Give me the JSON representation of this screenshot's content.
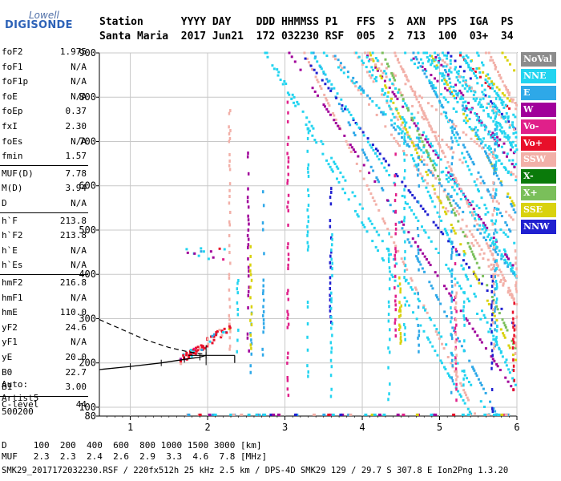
{
  "logo": {
    "line1": "Lowell",
    "line2": "DIGISONDE"
  },
  "header": {
    "labels": "Station      YYYY DAY    DDD HHMMSS P1   FFS  S  AXN  PPS  IGA  PS",
    "values": "Santa Maria  2017 Jun21  172 032230 RSF  005  2  713  100  03+  34"
  },
  "params": [
    {
      "name": "foF2",
      "value": "1.975"
    },
    {
      "name": "foF1",
      "value": "N/A"
    },
    {
      "name": "foF1p",
      "value": "N/A"
    },
    {
      "name": "foE",
      "value": "N/A"
    },
    {
      "name": "foEp",
      "value": "0.37"
    },
    {
      "name": "fxI",
      "value": "2.30"
    },
    {
      "name": "foEs",
      "value": "N/A"
    },
    {
      "name": "fmin",
      "value": "1.57"
    },
    {
      "name": "MUF(D)",
      "value": "7.78"
    },
    {
      "name": "M(D)",
      "value": "3.94"
    },
    {
      "name": "D",
      "value": "N/A"
    },
    {
      "name": "h`F",
      "value": "213.8"
    },
    {
      "name": "h`F2",
      "value": "213.8"
    },
    {
      "name": "h`E",
      "value": "N/A"
    },
    {
      "name": "h`Es",
      "value": "N/A"
    },
    {
      "name": "hmF2",
      "value": "216.8"
    },
    {
      "name": "hmF1",
      "value": "N/A"
    },
    {
      "name": "hmE",
      "value": "110.0"
    },
    {
      "name": "yF2",
      "value": "24.6"
    },
    {
      "name": "yF1",
      "value": "N/A"
    },
    {
      "name": "yE",
      "value": "20.0"
    },
    {
      "name": "B0",
      "value": "22.7"
    },
    {
      "name": "B1",
      "value": "3.00"
    },
    {
      "name": "C-level",
      "value": "44"
    }
  ],
  "auto": {
    "line1": "Auto:",
    "line2": "Artist5",
    "line3": "500200"
  },
  "muf_table": {
    "row_d": "D     100  200  400  600  800 1000 1500 3000 [km]",
    "row_muf": "MUF   2.3  2.3  2.4  2.6  2.9  3.3  4.6  7.8 [MHz]"
  },
  "footer": "SMK29_2017172032230.RSF / 220fx512h 25 kHz 2.5 km / DPS-4D SMK29 129 / 29.7 S 307.8 E Ion2Png 1.3.20",
  "legend": [
    {
      "label": "NoVal",
      "color": "#8c8c8c"
    },
    {
      "label": "NNE",
      "color": "#22d4f0"
    },
    {
      "label": "E",
      "color": "#2ea8e8"
    },
    {
      "label": "W",
      "color": "#a0009a"
    },
    {
      "label": "Vo-",
      "color": "#e0208a"
    },
    {
      "label": "Vo+",
      "color": "#e8102a"
    },
    {
      "label": "SSW",
      "color": "#f2b0a8"
    },
    {
      "label": "X-",
      "color": "#0a7a0a"
    },
    {
      "label": "X+",
      "color": "#7abf5a"
    },
    {
      "label": "SSE",
      "color": "#d9d20e"
    },
    {
      "label": "NNW",
      "color": "#2020d0"
    }
  ],
  "chart_data": {
    "type": "scatter",
    "x_range": [
      0.6,
      6.0
    ],
    "y_range": [
      80,
      900
    ],
    "x_ticks": [
      "1",
      "2",
      "3",
      "4",
      "5",
      "6"
    ],
    "x_tick_values": [
      1,
      2,
      3,
      4,
      5,
      6
    ],
    "y_ticks": [
      "80",
      "100",
      "200",
      "300",
      "400",
      "500",
      "600",
      "700",
      "800",
      "900"
    ],
    "y_tick_values": [
      80,
      100,
      200,
      300,
      400,
      500,
      600,
      700,
      800,
      900
    ],
    "grid": true,
    "profile_curve": [
      [
        0.6,
        185
      ],
      [
        1.0,
        192
      ],
      [
        1.4,
        200
      ],
      [
        1.7,
        208
      ],
      [
        1.9,
        213
      ],
      [
        1.98,
        217
      ]
    ],
    "x_trace": [
      [
        0.6,
        298
      ],
      [
        0.9,
        275
      ],
      [
        1.2,
        252
      ],
      [
        1.5,
        235
      ],
      [
        1.75,
        225
      ],
      [
        1.95,
        220
      ]
    ],
    "trace_points": [
      [
        1.7,
        215
      ],
      [
        1.8,
        218
      ],
      [
        1.9,
        222
      ],
      [
        2.0,
        230
      ],
      [
        2.1,
        245
      ],
      [
        2.2,
        262
      ]
    ]
  }
}
